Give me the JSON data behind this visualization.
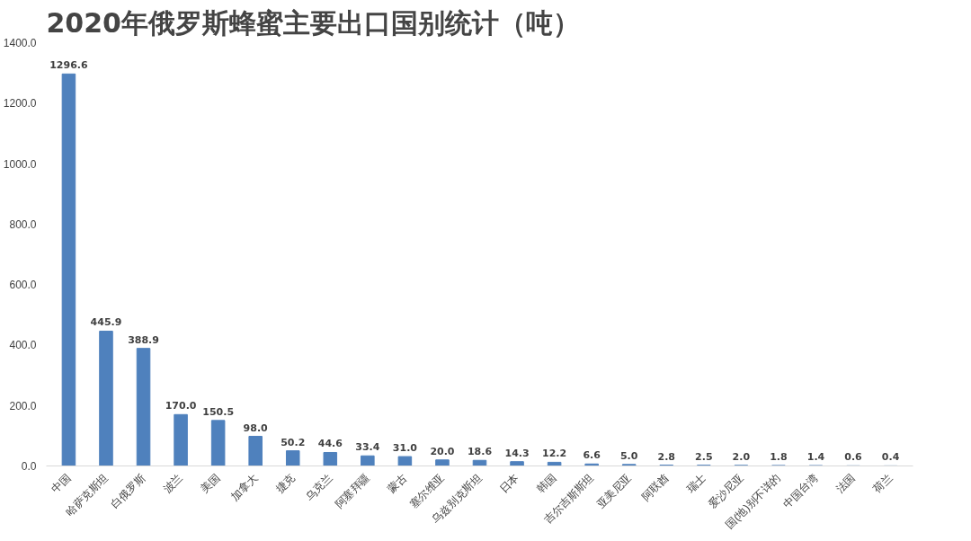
{
  "chart_data": {
    "type": "bar",
    "title": "2020年俄罗斯蜂蜜主要出口国别统计（吨）",
    "categories": [
      "中国",
      "哈萨克斯坦",
      "白俄罗斯",
      "波兰",
      "美国",
      "加拿大",
      "捷克",
      "乌克兰",
      "阿塞拜疆",
      "蒙古",
      "塞尔维亚",
      "乌兹别克斯坦",
      "日本",
      "韩国",
      "吉尔吉斯斯坦",
      "亚美尼亚",
      "阿联酋",
      "瑞士",
      "爱沙尼亚",
      "国(地)别不详的",
      "中国台湾",
      "法国",
      "荷兰"
    ],
    "values": [
      1296.6,
      445.9,
      388.9,
      170.0,
      150.5,
      98.0,
      50.2,
      44.6,
      33.4,
      31.0,
      20.0,
      18.6,
      14.3,
      12.2,
      6.6,
      5.0,
      2.8,
      2.5,
      2.0,
      1.8,
      1.4,
      0.6,
      0.4
    ],
    "color": "#4f81bd",
    "ylim": [
      0,
      1400
    ],
    "yticks": [
      {
        "value": 0,
        "label": "0.0"
      },
      {
        "value": 200,
        "label": "200.0"
      },
      {
        "value": 400,
        "label": "400.0"
      },
      {
        "value": 600,
        "label": "600.0"
      },
      {
        "value": 800,
        "label": "800.0"
      },
      {
        "value": 1000,
        "label": "1000.0"
      },
      {
        "value": 1200,
        "label": "1200.0"
      },
      {
        "value": 1400,
        "label": "1400.0"
      }
    ],
    "value_labels": [
      "1296.6",
      "445.9",
      "388.9",
      "170.0",
      "150.5",
      "98.0",
      "50.2",
      "44.6",
      "33.4",
      "31.0",
      "20.0",
      "18.6",
      "14.3",
      "12.2",
      "6.6",
      "5.0",
      "2.8",
      "2.5",
      "2.0",
      "1.8",
      "1.4",
      "0.6",
      "0.4"
    ],
    "grid": false
  }
}
